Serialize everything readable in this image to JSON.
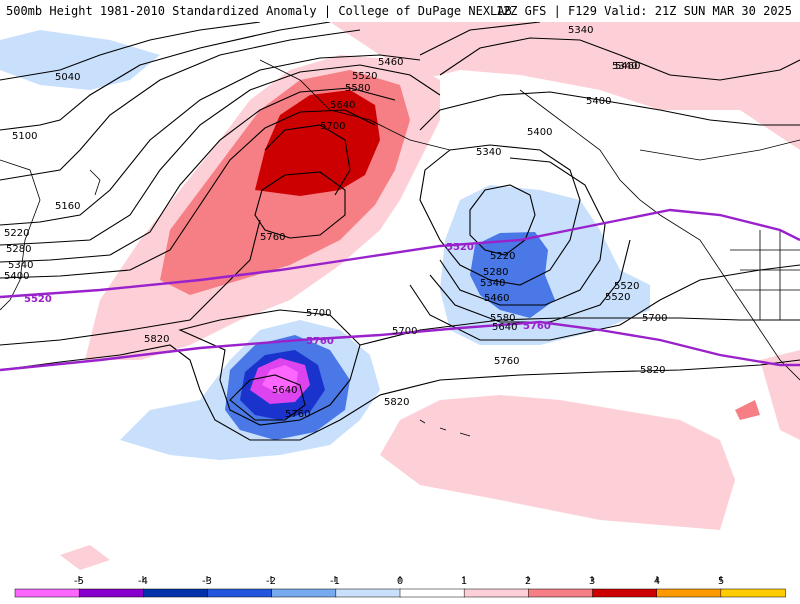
{
  "header": {
    "title": "500mb Height 1981-2010 Standardized Anomaly | College of DuPage NEXLAB",
    "run_info": "12Z GFS | F129 Valid: 21Z SUN MAR 30 2025"
  },
  "contour_labels": {
    "black": [
      "5040",
      "5100",
      "5160",
      "5220",
      "5280",
      "5340",
      "5400",
      "5460",
      "5520",
      "5580",
      "5640",
      "5700",
      "5760",
      "5340",
      "5400",
      "5340",
      "5400",
      "5460",
      "5520",
      "5220",
      "5280",
      "5340",
      "5460",
      "5580",
      "5640",
      "5520",
      "5700",
      "5820",
      "5700",
      "5760",
      "5640",
      "5760",
      "5820",
      "5700",
      "5820",
      "5340"
    ],
    "purple": [
      "5520",
      "5520",
      "5760",
      "5760"
    ]
  },
  "colorbar": {
    "labels": [
      "-5",
      "-4",
      "-3",
      "-2",
      "-1",
      "0",
      "1",
      "2",
      "3",
      "4",
      "5"
    ],
    "colors": [
      "#ff66ff",
      "#8800cc",
      "#0033aa",
      "#2255dd",
      "#77aaee",
      "#c8e0fb",
      "#ffffff",
      "#fcd0d6",
      "#f57f85",
      "#cc0000",
      "#ff9900",
      "#ffcc00"
    ]
  },
  "colors": {
    "positive_weak": "#fcd0d6",
    "positive_mid": "#f57f85",
    "positive_strong": "#cc0000",
    "negative_weak": "#c8e0fb",
    "negative_mid": "#4a78e6",
    "negative_strong": "#1a33cc",
    "negative_extreme": "#dd44ee",
    "contour": "#000000",
    "climo_contour": "#9922cc"
  }
}
